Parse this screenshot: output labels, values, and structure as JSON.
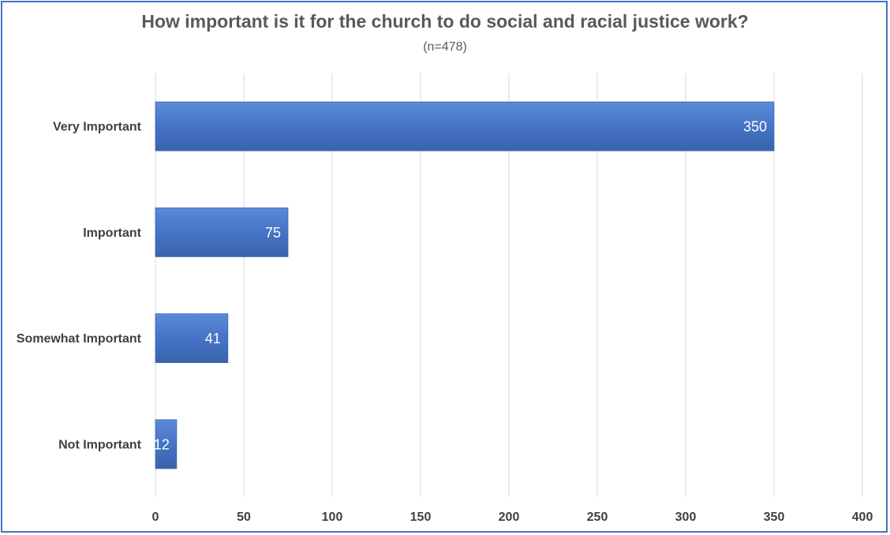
{
  "chart_data": {
    "type": "bar",
    "orientation": "horizontal",
    "title": "How important is it for the church to do social and racial justice work?",
    "subtitle": "(n=478)",
    "categories": [
      "Very Important",
      "Important",
      "Somewhat Important",
      "Not Important"
    ],
    "values": [
      350,
      75,
      41,
      12
    ],
    "data_labels": [
      "350",
      "75",
      "41",
      "12"
    ],
    "xlim": [
      0,
      400
    ],
    "x_ticks": [
      0,
      50,
      100,
      150,
      200,
      250,
      300,
      350,
      400
    ],
    "x_tick_labels": [
      "0",
      "50",
      "100",
      "150",
      "200",
      "250",
      "300",
      "350",
      "400"
    ],
    "grid": true,
    "legend": "none",
    "bar_color": "#4472c4",
    "border_color": "#4472c4"
  }
}
